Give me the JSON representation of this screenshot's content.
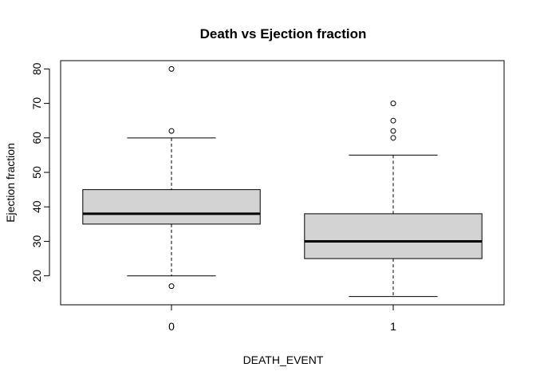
{
  "chart_data": {
    "type": "boxplot",
    "title": "Death vs Ejection fraction",
    "xlabel": "DEATH_EVENT",
    "ylabel": "Ejection fraction",
    "categories": [
      "0",
      "1"
    ],
    "ylim": [
      11.6,
      82.4
    ],
    "yticks": [
      20,
      30,
      40,
      50,
      60,
      70,
      80
    ],
    "ytick_labels": [
      "20",
      "30",
      "40",
      "50",
      "60",
      "70",
      "80"
    ],
    "grid": false,
    "legend": "none",
    "box_color": "#d3d3d3",
    "boxes": [
      {
        "category": "0",
        "whisker_low": 20,
        "q1": 35,
        "median": 38,
        "q3": 45,
        "whisker_high": 60,
        "outliers": [
          17,
          62,
          80
        ]
      },
      {
        "category": "1",
        "whisker_low": 14,
        "q1": 25,
        "median": 30,
        "q3": 38,
        "whisker_high": 55,
        "outliers": [
          60,
          62,
          65,
          70
        ]
      }
    ]
  }
}
